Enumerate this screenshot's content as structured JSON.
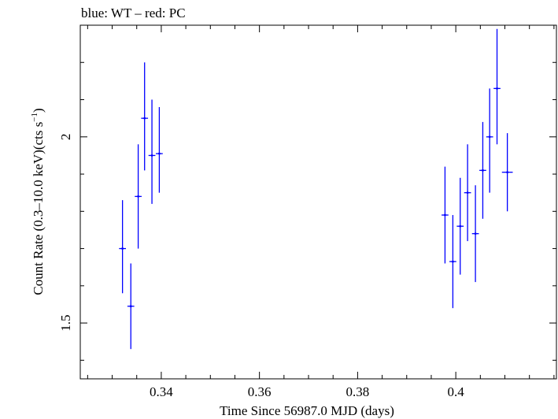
{
  "chart_data": {
    "type": "scatter",
    "title": "blue: WT – red: PC",
    "xlabel": "Time Since 56987.0 MJD (days)",
    "ylabel_main": "Count Rate (0.3–10.0 keV)(cts s",
    "ylabel_sup": "−1",
    "ylabel_close": ")",
    "xlim": [
      0.3235,
      0.4205
    ],
    "ylim": [
      1.35,
      2.3
    ],
    "x_ticks": [
      0.34,
      0.36,
      0.38,
      0.4
    ],
    "x_tick_labels": [
      "0.34",
      "0.36",
      "0.38",
      "0.4"
    ],
    "y_ticks": [
      1.5,
      2.0
    ],
    "y_tick_labels": [
      "1.5",
      "2"
    ],
    "grid": false,
    "series": [
      {
        "color": "#0000ff",
        "points": [
          {
            "x": 0.3321,
            "y": 1.7,
            "xerr": 0.0007,
            "ylo": 1.58,
            "yhi": 1.83
          },
          {
            "x": 0.3338,
            "y": 1.545,
            "xerr": 0.0007,
            "ylo": 1.43,
            "yhi": 1.66
          },
          {
            "x": 0.3353,
            "y": 1.84,
            "xerr": 0.0007,
            "ylo": 1.7,
            "yhi": 1.98
          },
          {
            "x": 0.3366,
            "y": 2.05,
            "xerr": 0.0007,
            "ylo": 1.91,
            "yhi": 2.2
          },
          {
            "x": 0.3381,
            "y": 1.95,
            "xerr": 0.0007,
            "ylo": 1.82,
            "yhi": 2.1
          },
          {
            "x": 0.3396,
            "y": 1.955,
            "xerr": 0.0007,
            "ylo": 1.85,
            "yhi": 2.08
          },
          {
            "x": 0.3978,
            "y": 1.79,
            "xerr": 0.0007,
            "ylo": 1.66,
            "yhi": 1.92
          },
          {
            "x": 0.3994,
            "y": 1.665,
            "xerr": 0.0007,
            "ylo": 1.54,
            "yhi": 1.79
          },
          {
            "x": 0.4009,
            "y": 1.76,
            "xerr": 0.0007,
            "ylo": 1.63,
            "yhi": 1.89
          },
          {
            "x": 0.4024,
            "y": 1.85,
            "xerr": 0.0007,
            "ylo": 1.72,
            "yhi": 1.98
          },
          {
            "x": 0.404,
            "y": 1.74,
            "xerr": 0.0007,
            "ylo": 1.61,
            "yhi": 1.87
          },
          {
            "x": 0.4055,
            "y": 1.91,
            "xerr": 0.0007,
            "ylo": 1.78,
            "yhi": 2.04
          },
          {
            "x": 0.4069,
            "y": 2.0,
            "xerr": 0.0007,
            "ylo": 1.85,
            "yhi": 2.13
          },
          {
            "x": 0.4084,
            "y": 2.13,
            "xerr": 0.0007,
            "ylo": 1.98,
            "yhi": 2.29
          },
          {
            "x": 0.4105,
            "y": 1.905,
            "xerr": 0.0011,
            "ylo": 1.8,
            "yhi": 2.01
          }
        ]
      }
    ]
  }
}
